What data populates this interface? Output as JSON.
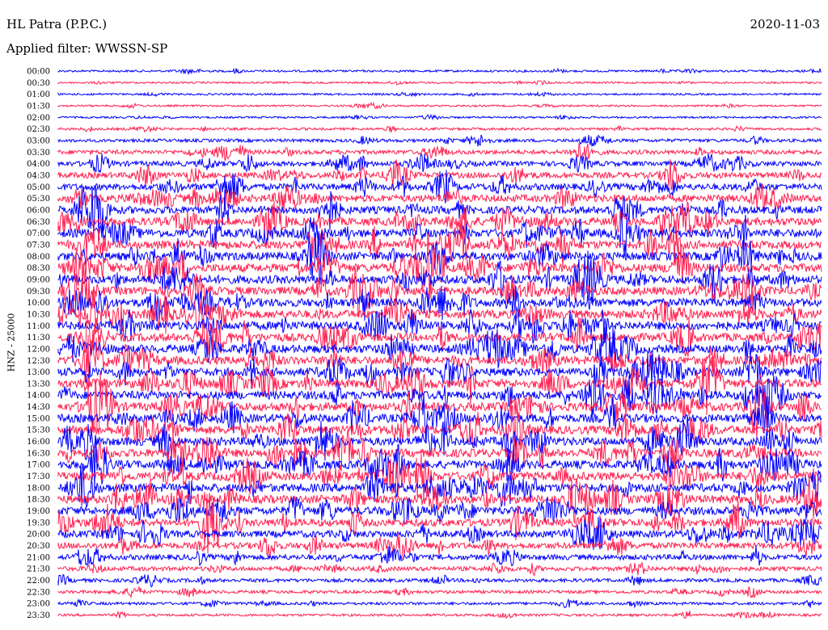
{
  "header": {
    "station": "HL Patra (P.P.C.)",
    "date": "2020-11-03",
    "filter": "Applied filter: WWSSN-SP"
  },
  "chart_data": {
    "type": "seismogram",
    "channel_label": "HNZ - 25000",
    "row_labels": [
      "00:00",
      "00:30",
      "01:00",
      "01:30",
      "02:00",
      "02:30",
      "03:00",
      "03:30",
      "04:00",
      "04:30",
      "05:00",
      "05:30",
      "06:00",
      "06:30",
      "07:00",
      "07:30",
      "08:00",
      "08:30",
      "09:00",
      "09:30",
      "10:00",
      "10:30",
      "11:00",
      "11:30",
      "12:00",
      "12:30",
      "13:00",
      "13:30",
      "14:00",
      "14:30",
      "15:00",
      "15:30",
      "16:00",
      "16:30",
      "17:00",
      "17:30",
      "18:00",
      "18:30",
      "19:00",
      "19:30",
      "20:00",
      "20:30",
      "21:00",
      "21:30",
      "22:00",
      "22:30",
      "23:00",
      "23:30"
    ],
    "trace_colors": [
      "#0000ff",
      "#ff2050"
    ],
    "activity_level": [
      0.15,
      0.12,
      0.12,
      0.12,
      0.12,
      0.2,
      0.3,
      0.45,
      0.55,
      0.65,
      0.75,
      0.85,
      0.9,
      0.95,
      1.0,
      1.0,
      1.0,
      1.0,
      1.0,
      1.0,
      1.0,
      1.0,
      1.0,
      1.0,
      1.0,
      1.0,
      1.0,
      1.0,
      1.0,
      1.0,
      1.0,
      1.0,
      1.0,
      1.0,
      1.0,
      1.0,
      1.0,
      1.0,
      0.95,
      0.9,
      0.8,
      0.7,
      0.6,
      0.45,
      0.35,
      0.3,
      0.25,
      0.2
    ]
  }
}
